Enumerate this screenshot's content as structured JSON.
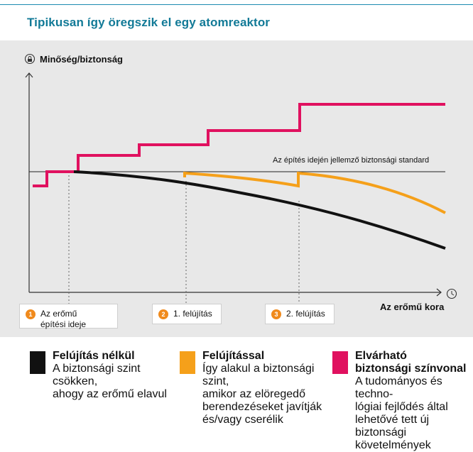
{
  "title": "Tipikusan így öregszik el egy atomreaktor",
  "y_axis_label": "Minőség/biztonság",
  "x_axis_label": "Az erőmű kora",
  "standard_label": "Az építés idején jellemző biztonsági standard",
  "phases": [
    {
      "number": "1",
      "label": "Az erőmű\népítési ideje"
    },
    {
      "number": "2",
      "label": "1. felújítás"
    },
    {
      "number": "3",
      "label": "2. felújítás"
    }
  ],
  "colors": {
    "no_renovation": "#111111",
    "with_renovation": "#f5a01a",
    "expected": "#e0115f",
    "title": "#127a97",
    "phase_number": "#f08a1c"
  },
  "legend": [
    {
      "title": "Felújítás nélkül",
      "desc": "A biztonsági szint csökken,\nahogy az erőmű elavul",
      "color": "#111111"
    },
    {
      "title": "Felújítással",
      "desc": "Így alakul a biztonsági szint,\namikor az elöregedő\nberendezéseket javítják\nés/vagy cserélik",
      "color": "#f5a01a"
    },
    {
      "title": "Elvárható\nbiztonsági színvonal",
      "desc": "A tudományos és techno-\nlógiai fejlődés által\nlehetővé tett új biztonsági\nkövetelmények",
      "color": "#e0115f"
    }
  ],
  "icons": {
    "y_axis": "lock-icon",
    "x_axis": "clock-icon"
  }
}
